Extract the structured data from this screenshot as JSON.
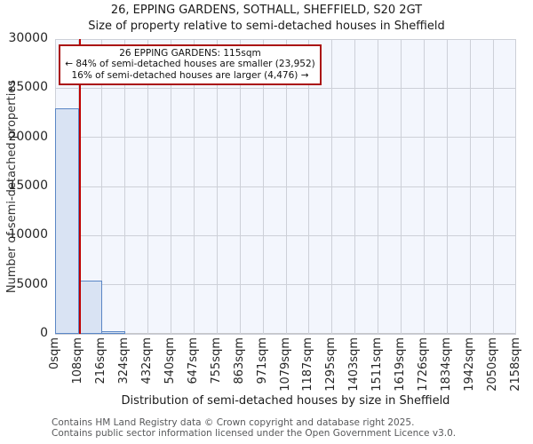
{
  "title": {
    "line1": "26, EPPING GARDENS, SOTHALL, SHEFFIELD, S20 2GT",
    "line2": "Size of property relative to semi-detached houses in Sheffield"
  },
  "annotation": {
    "line1": "26 EPPING GARDENS: 115sqm",
    "line2": "← 84% of semi-detached houses are smaller (23,952)",
    "line3": "16% of semi-detached houses are larger (4,476) →"
  },
  "footer": {
    "line1": "Contains HM Land Registry data © Crown copyright and database right 2025.",
    "line2": "Contains public sector information licensed under the Open Government Licence v3.0."
  },
  "chart_data": {
    "type": "bar",
    "title": "26, EPPING GARDENS, SOTHALL, SHEFFIELD, S20 2GT — Size of property relative to semi-detached houses in Sheffield",
    "xlabel": "Distribution of semi-detached houses by size in Sheffield",
    "ylabel": "Number of semi-detached properties",
    "x_tick_labels": [
      "0sqm",
      "108sqm",
      "216sqm",
      "324sqm",
      "432sqm",
      "540sqm",
      "647sqm",
      "755sqm",
      "863sqm",
      "971sqm",
      "1079sqm",
      "1187sqm",
      "1295sqm",
      "1403sqm",
      "1511sqm",
      "1619sqm",
      "1726sqm",
      "1834sqm",
      "1942sqm",
      "2050sqm",
      "2158sqm"
    ],
    "bin_edges_sqm": [
      0,
      108,
      216,
      324,
      432,
      540,
      647,
      755,
      863,
      971,
      1079,
      1187,
      1295,
      1403,
      1511,
      1619,
      1726,
      1834,
      1942,
      2050,
      2158
    ],
    "values": [
      22950,
      5400,
      280,
      0,
      0,
      0,
      0,
      0,
      0,
      0,
      0,
      0,
      0,
      0,
      0,
      0,
      0,
      0,
      0,
      0
    ],
    "y_ticks": [
      0,
      5000,
      10000,
      15000,
      20000,
      25000,
      30000
    ],
    "ylim": [
      0,
      30000
    ],
    "xlim_sqm": [
      0,
      2158
    ],
    "marker_value_sqm": 115,
    "marker_label": "26 EPPING GARDENS: 115sqm",
    "pct_smaller": 84,
    "count_smaller": 23952,
    "pct_larger": 16,
    "count_larger": 4476,
    "grid": true,
    "legend": "none",
    "colors": {
      "bar_fill": "#d9e3f3",
      "bar_border": "#5a86c5",
      "marker_line": "#c00000",
      "annotation_border": "#aa1111",
      "grid_line": "#cdd0d8",
      "plot_background": "#f3f6fd"
    }
  }
}
